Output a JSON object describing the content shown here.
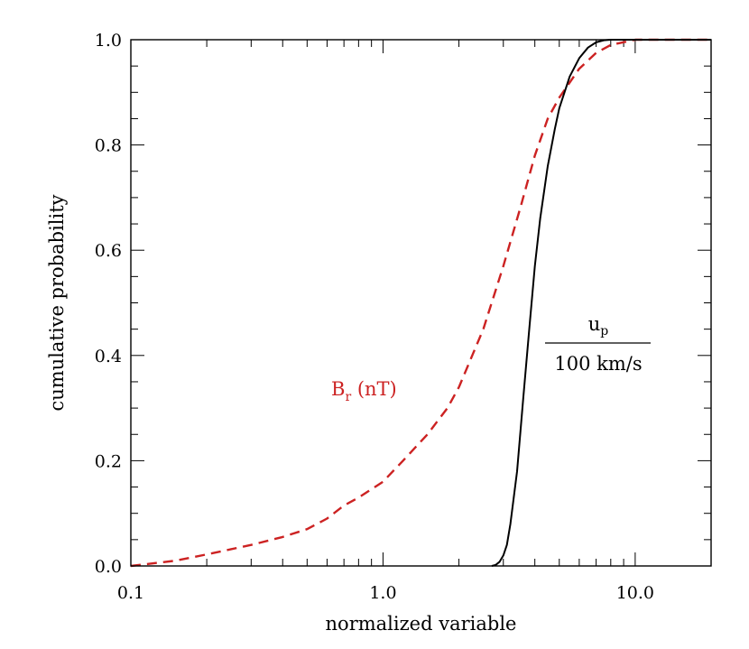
{
  "chart_data": {
    "type": "line",
    "title": "",
    "xlabel": "normalized variable",
    "ylabel": "cumulative probability",
    "xscale": "log",
    "xlim": [
      0.1,
      20
    ],
    "ylim": [
      0.0,
      1.0
    ],
    "grid": false,
    "x_tick_labels": [
      {
        "value": 0.1,
        "label": "0.1"
      },
      {
        "value": 1.0,
        "label": "1.0"
      },
      {
        "value": 10.0,
        "label": "10.0"
      }
    ],
    "y_tick_labels": [
      {
        "value": 0.0,
        "label": "0.0"
      },
      {
        "value": 0.2,
        "label": "0.2"
      },
      {
        "value": 0.4,
        "label": "0.4"
      },
      {
        "value": 0.6,
        "label": "0.6"
      },
      {
        "value": 0.8,
        "label": "0.8"
      },
      {
        "value": 1.0,
        "label": "1.0"
      }
    ],
    "series": [
      {
        "key": "br",
        "color": "#cc2222",
        "style": "dashed",
        "x": [
          0.1,
          0.15,
          0.2,
          0.3,
          0.4,
          0.5,
          0.6,
          0.7,
          0.8,
          1.0,
          1.2,
          1.5,
          1.8,
          2.0,
          2.5,
          3.0,
          3.5,
          4.0,
          4.5,
          5.0,
          6.0,
          7.0,
          8.0,
          10.0,
          15.0,
          20.0
        ],
        "y": [
          0.0,
          0.01,
          0.022,
          0.04,
          0.055,
          0.07,
          0.09,
          0.115,
          0.13,
          0.16,
          0.2,
          0.25,
          0.3,
          0.34,
          0.45,
          0.57,
          0.68,
          0.78,
          0.85,
          0.89,
          0.945,
          0.975,
          0.99,
          1.0,
          1.0,
          1.0
        ]
      },
      {
        "key": "up",
        "color": "#000000",
        "style": "solid",
        "x": [
          2.7,
          2.8,
          2.9,
          3.0,
          3.1,
          3.2,
          3.4,
          3.6,
          3.8,
          4.0,
          4.2,
          4.5,
          4.8,
          5.0,
          5.5,
          6.0,
          6.5,
          7.0,
          7.5,
          8.0,
          9.0,
          10.0,
          20.0
        ],
        "y": [
          0.0,
          0.002,
          0.008,
          0.02,
          0.04,
          0.08,
          0.18,
          0.32,
          0.45,
          0.57,
          0.66,
          0.76,
          0.83,
          0.87,
          0.93,
          0.965,
          0.985,
          0.995,
          0.999,
          1.0,
          1.0,
          1.0,
          1.0
        ]
      }
    ],
    "annotations": {
      "br_label": "B",
      "br_sub": "r",
      "br_unit": " (nT)",
      "up_numerator": "u",
      "up_sub": "p",
      "up_denominator": "100 km/s"
    }
  }
}
